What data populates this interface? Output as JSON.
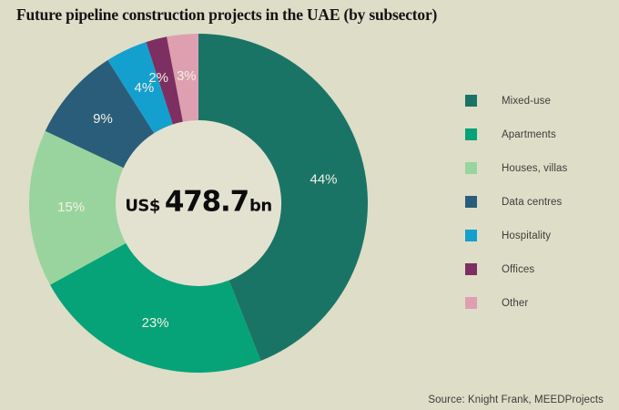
{
  "page": {
    "title": "Future pipeline construction projects in the UAE (by subsector)",
    "source": "Source: Knight Frank, MEEDProjects",
    "background_color": "#deddc7",
    "hole_color": "#e3e2d0"
  },
  "chart_data": {
    "type": "pie",
    "subtype": "donut",
    "title": "Future pipeline construction projects in the UAE (by subsector)",
    "center": {
      "currency": "US$",
      "value": "478.7",
      "unit": "bn"
    },
    "legend_position": "right",
    "start_angle_deg": 0,
    "direction": "clockwise",
    "percent_label_color": "#f2f1e6",
    "slices": [
      {
        "label": "Mixed-use",
        "value": 44,
        "percent_label": "44%",
        "color": "#1a7466"
      },
      {
        "label": "Apartments",
        "value": 23,
        "percent_label": "23%",
        "color": "#06a378"
      },
      {
        "label": "Houses, villas",
        "value": 15,
        "percent_label": "15%",
        "color": "#99d49e"
      },
      {
        "label": "Data centres",
        "value": 9,
        "percent_label": "9%",
        "color": "#2a5d7a"
      },
      {
        "label": "Hospitality",
        "value": 4,
        "percent_label": "4%",
        "color": "#14a0ce"
      },
      {
        "label": "Offices",
        "value": 2,
        "percent_label": "2%",
        "color": "#7d2f62"
      },
      {
        "label": "Other",
        "value": 3,
        "percent_label": "3%",
        "color": "#dea0b0"
      }
    ]
  }
}
